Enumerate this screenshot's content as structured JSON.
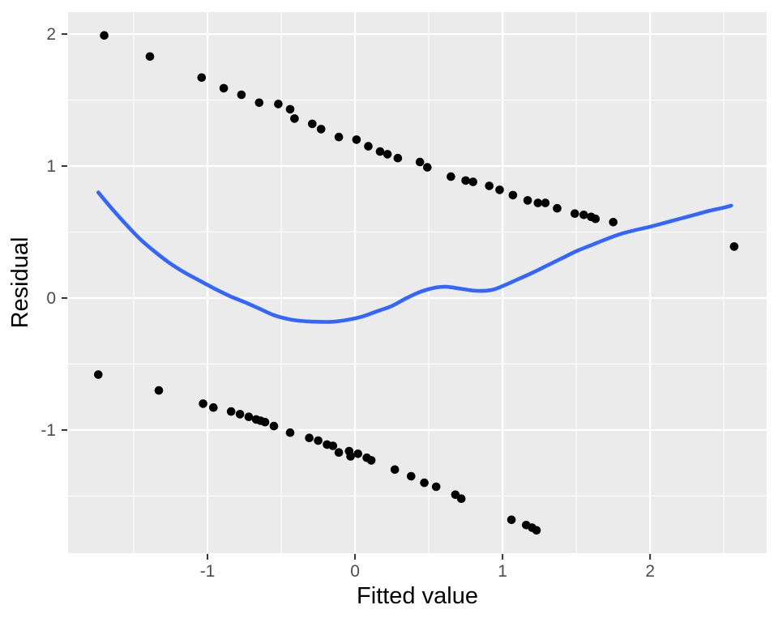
{
  "figure": {
    "kind": "ggplot-residual-plot",
    "background": "#FFFFFF"
  },
  "colors": {
    "panel_bg": "#EBEBEB",
    "grid_major": "#FFFFFF",
    "grid_minor": "#FFFFFF",
    "point": "#000000",
    "smooth_line": "#3366FF",
    "tick_label": "#4D4D4D",
    "tick_mark": "#333333",
    "axis_title": "#000000"
  },
  "chart_data": {
    "type": "scatter",
    "title": "",
    "xlabel": "Fitted value",
    "ylabel": "Residual",
    "xlim": [
      -1.945,
      2.79
    ],
    "ylim": [
      -1.933,
      2.166
    ],
    "x_major_ticks": [
      -1,
      0,
      1,
      2
    ],
    "x_major_tick_labels": [
      "-1",
      "0",
      "1",
      "2"
    ],
    "y_major_ticks": [
      -1,
      0,
      1,
      2
    ],
    "y_major_tick_labels": [
      "-1",
      "0",
      "1",
      "2"
    ],
    "x_minor_ticks": [
      -1.5,
      -0.5,
      0.5,
      1.5,
      2.5
    ],
    "y_minor_ticks": [
      -1.5,
      -0.5,
      0.5,
      1.5
    ],
    "grid": true,
    "legend_position": "none",
    "series": [
      {
        "name": "residuals-upper-band",
        "type": "scatter",
        "points": [
          [
            -1.7,
            1.99
          ],
          [
            -1.39,
            1.83
          ],
          [
            -1.04,
            1.67
          ],
          [
            -0.89,
            1.59
          ],
          [
            -0.77,
            1.54
          ],
          [
            -0.65,
            1.48
          ],
          [
            -0.52,
            1.47
          ],
          [
            -0.44,
            1.43
          ],
          [
            -0.41,
            1.36
          ],
          [
            -0.29,
            1.32
          ],
          [
            -0.23,
            1.28
          ],
          [
            -0.11,
            1.22
          ],
          [
            0.01,
            1.2
          ],
          [
            0.09,
            1.15
          ],
          [
            0.17,
            1.11
          ],
          [
            0.22,
            1.09
          ],
          [
            0.29,
            1.06
          ],
          [
            0.44,
            1.03
          ],
          [
            0.49,
            0.99
          ],
          [
            0.65,
            0.92
          ],
          [
            0.75,
            0.89
          ],
          [
            0.8,
            0.88
          ],
          [
            0.91,
            0.85
          ],
          [
            0.98,
            0.82
          ],
          [
            1.07,
            0.78
          ],
          [
            1.17,
            0.74
          ],
          [
            1.24,
            0.72
          ],
          [
            1.29,
            0.72
          ],
          [
            1.37,
            0.68
          ],
          [
            1.49,
            0.64
          ],
          [
            1.55,
            0.63
          ],
          [
            1.6,
            0.615
          ],
          [
            1.63,
            0.6
          ],
          [
            1.75,
            0.575
          ],
          [
            2.57,
            0.39
          ]
        ]
      },
      {
        "name": "residuals-lower-band",
        "type": "scatter",
        "points": [
          [
            -1.74,
            -0.58
          ],
          [
            -1.33,
            -0.7
          ],
          [
            -1.03,
            -0.8
          ],
          [
            -0.96,
            -0.83
          ],
          [
            -0.84,
            -0.86
          ],
          [
            -0.78,
            -0.88
          ],
          [
            -0.72,
            -0.9
          ],
          [
            -0.67,
            -0.92
          ],
          [
            -0.64,
            -0.93
          ],
          [
            -0.61,
            -0.94
          ],
          [
            -0.55,
            -0.97
          ],
          [
            -0.44,
            -1.02
          ],
          [
            -0.31,
            -1.06
          ],
          [
            -0.25,
            -1.08
          ],
          [
            -0.19,
            -1.11
          ],
          [
            -0.15,
            -1.12
          ],
          [
            -0.11,
            -1.17
          ],
          [
            -0.04,
            -1.16
          ],
          [
            -0.03,
            -1.2
          ],
          [
            0.02,
            -1.18
          ],
          [
            0.08,
            -1.21
          ],
          [
            0.11,
            -1.23
          ],
          [
            0.27,
            -1.3
          ],
          [
            0.38,
            -1.35
          ],
          [
            0.47,
            -1.4
          ],
          [
            0.55,
            -1.43
          ],
          [
            0.68,
            -1.49
          ],
          [
            0.72,
            -1.52
          ],
          [
            1.06,
            -1.68
          ],
          [
            1.16,
            -1.72
          ],
          [
            1.2,
            -1.74
          ],
          [
            1.23,
            -1.76
          ]
        ]
      },
      {
        "name": "loess-smooth",
        "type": "line",
        "points": [
          [
            -1.74,
            0.8
          ],
          [
            -1.65,
            0.68
          ],
          [
            -1.55,
            0.555
          ],
          [
            -1.45,
            0.44
          ],
          [
            -1.35,
            0.345
          ],
          [
            -1.25,
            0.26
          ],
          [
            -1.15,
            0.19
          ],
          [
            -1.05,
            0.13
          ],
          [
            -0.95,
            0.07
          ],
          [
            -0.85,
            0.015
          ],
          [
            -0.75,
            -0.03
          ],
          [
            -0.65,
            -0.08
          ],
          [
            -0.55,
            -0.13
          ],
          [
            -0.45,
            -0.16
          ],
          [
            -0.35,
            -0.175
          ],
          [
            -0.25,
            -0.18
          ],
          [
            -0.15,
            -0.18
          ],
          [
            -0.05,
            -0.165
          ],
          [
            0.05,
            -0.14
          ],
          [
            0.15,
            -0.1
          ],
          [
            0.25,
            -0.06
          ],
          [
            0.35,
            0.0
          ],
          [
            0.45,
            0.05
          ],
          [
            0.55,
            0.08
          ],
          [
            0.62,
            0.085
          ],
          [
            0.72,
            0.07
          ],
          [
            0.82,
            0.055
          ],
          [
            0.92,
            0.06
          ],
          [
            1.0,
            0.09
          ],
          [
            1.1,
            0.14
          ],
          [
            1.2,
            0.19
          ],
          [
            1.3,
            0.245
          ],
          [
            1.4,
            0.3
          ],
          [
            1.5,
            0.355
          ],
          [
            1.6,
            0.4
          ],
          [
            1.7,
            0.445
          ],
          [
            1.8,
            0.485
          ],
          [
            1.9,
            0.515
          ],
          [
            2.0,
            0.54
          ],
          [
            2.1,
            0.57
          ],
          [
            2.2,
            0.6
          ],
          [
            2.3,
            0.63
          ],
          [
            2.4,
            0.66
          ],
          [
            2.5,
            0.685
          ],
          [
            2.55,
            0.7
          ]
        ]
      }
    ]
  }
}
